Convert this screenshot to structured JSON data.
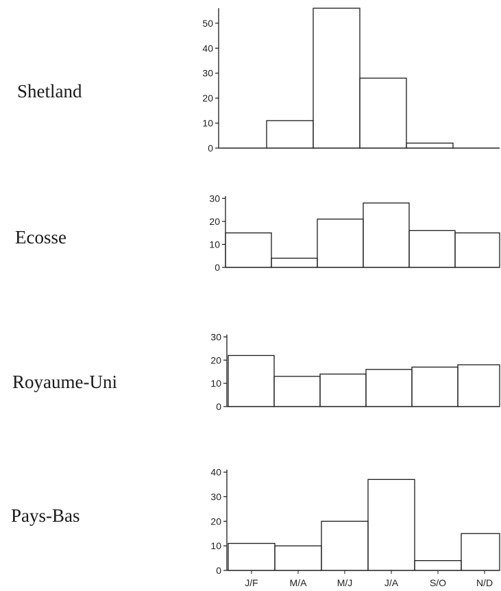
{
  "chart_data": [
    {
      "type": "bar",
      "title": "Shetland",
      "categories": [
        "J/F",
        "M/A",
        "M/J",
        "J/A",
        "S/O",
        "N/D"
      ],
      "values": [
        0,
        11,
        56,
        28,
        2,
        0
      ],
      "ylim": [
        0,
        56
      ],
      "yticks": [
        0,
        10,
        20,
        30,
        40,
        50
      ],
      "show_category_labels": false
    },
    {
      "type": "bar",
      "title": "Ecosse",
      "categories": [
        "J/F",
        "M/A",
        "M/J",
        "J/A",
        "S/O",
        "N/D"
      ],
      "values": [
        15,
        4,
        21,
        28,
        16,
        15
      ],
      "ylim": [
        0,
        31
      ],
      "yticks": [
        0,
        10,
        20,
        30
      ],
      "show_category_labels": false
    },
    {
      "type": "bar",
      "title": "Royaume-Uni",
      "categories": [
        "J/F",
        "M/A",
        "M/J",
        "J/A",
        "S/O",
        "N/D"
      ],
      "values": [
        22,
        13,
        14,
        16,
        17,
        18
      ],
      "ylim": [
        0,
        31
      ],
      "yticks": [
        0,
        10,
        20,
        30
      ],
      "show_category_labels": false
    },
    {
      "type": "bar",
      "title": "Pays-Bas",
      "categories": [
        "J/F",
        "M/A",
        "M/J",
        "J/A",
        "S/O",
        "N/D"
      ],
      "values": [
        11,
        10,
        20,
        37,
        4,
        15
      ],
      "ylim": [
        0,
        41
      ],
      "yticks": [
        0,
        10,
        20,
        30,
        40
      ],
      "show_category_labels": true
    }
  ]
}
